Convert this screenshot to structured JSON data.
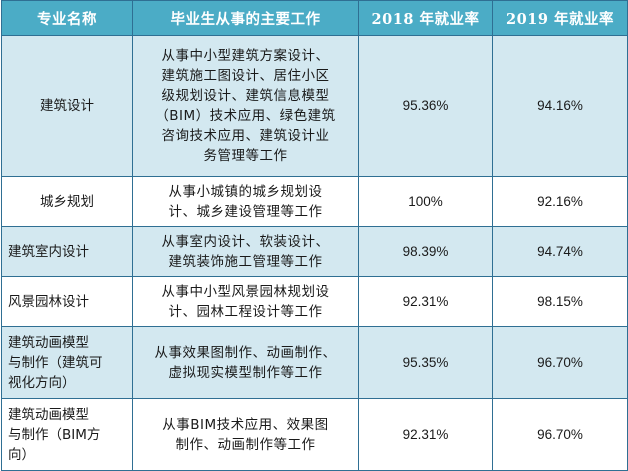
{
  "table": {
    "headers": [
      "专业名称",
      "毕业生从事的主要工作",
      "2018 年就业率",
      "2019 年就业率"
    ],
    "rows": [
      {
        "major": "建筑设计",
        "work_lines": [
          "从事中小型建筑方案设计、",
          "建筑施工图设计、居住小区",
          "级规划设计、建筑信息模型",
          "（BIM）技术应用、绿色建筑",
          "咨询技术应用、建筑设计业",
          "务管理等工作"
        ],
        "rate_2018": "95.36%",
        "rate_2019": "94.16%"
      },
      {
        "major": "城乡规划",
        "work_lines": [
          "从事小城镇的城乡规划设",
          "计、城乡建设管理等工作"
        ],
        "rate_2018": "100%",
        "rate_2019": "92.16%"
      },
      {
        "major": "建筑室内设计",
        "work_lines": [
          "从事室内设计、软装设计、",
          "建筑装饰施工管理等工作"
        ],
        "rate_2018": "98.39%",
        "rate_2019": "94.74%"
      },
      {
        "major": "风景园林设计",
        "work_lines": [
          "从事中小型风景园林规划设",
          "计、园林工程设计等工作"
        ],
        "rate_2018": "92.31%",
        "rate_2019": "98.15%"
      },
      {
        "major_lines": [
          "建筑动画模型",
          "与制作（建筑可",
          "视化方向）"
        ],
        "work_lines": [
          "从事效果图制作、动画制作、",
          "虚拟现实模型制作等工作"
        ],
        "rate_2018": "95.35%",
        "rate_2019": "96.70%"
      },
      {
        "major_lines": [
          "建筑动画模型",
          "与制作（BIM方",
          "向）"
        ],
        "work_lines": [
          "从事BIM技术应用、效果图",
          "制作、动画制作等工作"
        ],
        "rate_2018": "92.31%",
        "rate_2019": "96.70%"
      }
    ]
  }
}
